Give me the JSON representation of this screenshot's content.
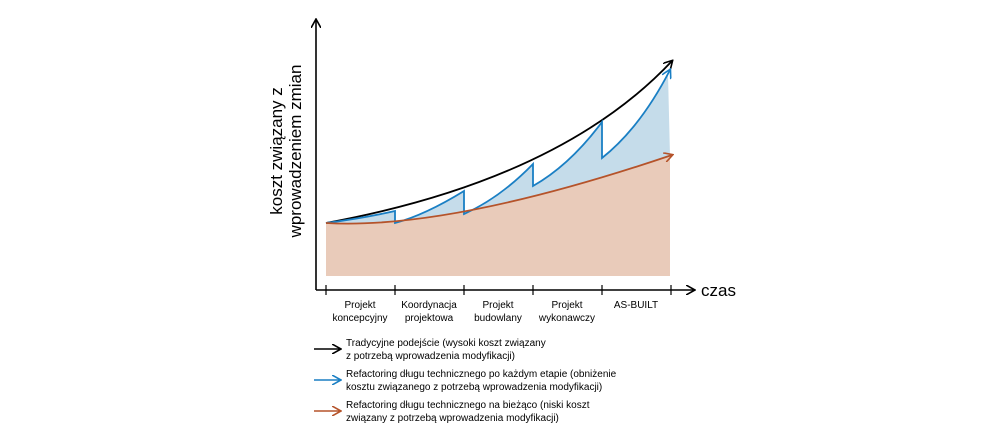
{
  "axes": {
    "y_label_lines": [
      "koszt związany z",
      "wprowadzeniem zmian"
    ],
    "x_label": "czas"
  },
  "phases": [
    {
      "lines": [
        "Projekt",
        "koncepcyjny"
      ]
    },
    {
      "lines": [
        "Koordynacja",
        "projektowa"
      ]
    },
    {
      "lines": [
        "Projekt",
        "budowlany"
      ]
    },
    {
      "lines": [
        "Projekt",
        "wykonawczy"
      ]
    },
    {
      "lines": [
        "AS-BUILT"
      ]
    }
  ],
  "legend": [
    {
      "color": "#000000",
      "lines": [
        "Tradycyjne podejście (wysoki koszt związany",
        "z potrzebą wprowadzenia modyfikacji)"
      ]
    },
    {
      "color": "#1a7fc4",
      "lines": [
        "Refactoring długu technicznego po każdym etapie (obniżenie",
        "kosztu związanego z potrzebą wprowadzenia modyfikacji)"
      ]
    },
    {
      "color": "#b5532a",
      "lines": [
        "Refactoring długu technicznego na bieżąco (niski koszt",
        "związany z potrzebą wprowadzenia modyfikacji)"
      ]
    }
  ],
  "colors": {
    "traditional": "#000000",
    "refactor_per_stage": "#1a7fc4",
    "refactor_per_stage_fill": "#c5dcea",
    "refactor_continuous": "#b5532a",
    "refactor_continuous_fill": "#e9cbba",
    "axis": "#000000"
  }
}
